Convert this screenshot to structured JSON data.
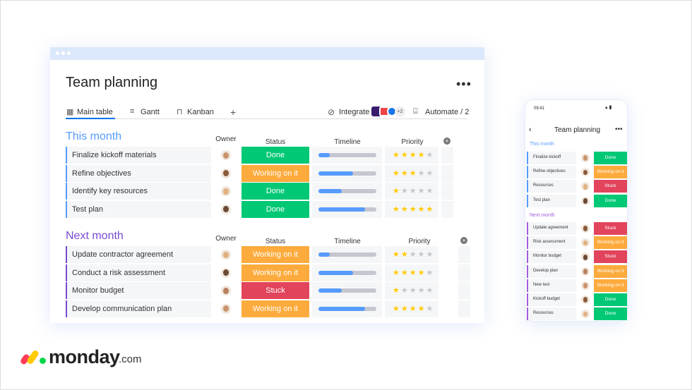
{
  "board": {
    "title": "Team planning",
    "tabs": [
      "Main table",
      "Gantt",
      "Kanban"
    ],
    "integrate": "Integrate",
    "integrate_more": "+2",
    "automate": "Automate / 2",
    "groups": [
      {
        "name": "This month",
        "color": "#579bfc",
        "columns": [
          "Owner",
          "Status",
          "Timeline",
          "Priority"
        ],
        "rows": [
          {
            "task": "Finalize kickoff materials",
            "status": "Done",
            "timeline": 0.2,
            "priority": 4
          },
          {
            "task": "Refine objectives",
            "status": "Working on it",
            "timeline": 0.6,
            "priority": 3
          },
          {
            "task": "Identify key resources",
            "status": "Done",
            "timeline": 0.4,
            "priority": 1
          },
          {
            "task": "Test plan",
            "status": "Done",
            "timeline": 0.8,
            "priority": 5
          }
        ]
      },
      {
        "name": "Next month",
        "color": "#784bd1",
        "columns": [
          "Owner",
          "Status",
          "Timeline",
          "Priority"
        ],
        "rows": [
          {
            "task": "Update contractor agreement",
            "status": "Working on it",
            "timeline": 0.2,
            "priority": 2
          },
          {
            "task": "Conduct a risk assessment",
            "status": "Working on it",
            "timeline": 0.6,
            "priority": 4
          },
          {
            "task": "Monitor budget",
            "status": "Stuck",
            "timeline": 0.4,
            "priority": 1
          },
          {
            "task": "Develop communication plan",
            "status": "Working on it",
            "timeline": 0.8,
            "priority": 4
          }
        ]
      }
    ]
  },
  "status_colors": {
    "Done": "#00c875",
    "Working on it": "#fdab3d",
    "Stuck": "#e2445c"
  },
  "mobile": {
    "time": "09:41",
    "title": "Team planning",
    "groups": [
      {
        "name": "This month",
        "color": "#579bfc",
        "rows": [
          {
            "task": "Finalize kickoff",
            "status": "Done"
          },
          {
            "task": "Refine objectives",
            "status": "Working on it"
          },
          {
            "task": "Resources",
            "status": "Stuck"
          },
          {
            "task": "Test plan",
            "status": "Done"
          }
        ]
      },
      {
        "name": "Next month",
        "color": "#a25ddc",
        "rows": [
          {
            "task": "Update agreement",
            "status": "Stuck"
          },
          {
            "task": "Risk assessment",
            "status": "Working on it"
          },
          {
            "task": "Monitor budget",
            "status": "Stuck"
          },
          {
            "task": "Develop plan",
            "status": "Working on it"
          },
          {
            "task": "New test",
            "status": "Working on it"
          },
          {
            "task": "Kickoff budget",
            "status": "Done"
          },
          {
            "task": "Resources",
            "status": "Done"
          }
        ]
      }
    ]
  },
  "logo": {
    "brand": "monday",
    "suffix": ".com"
  }
}
